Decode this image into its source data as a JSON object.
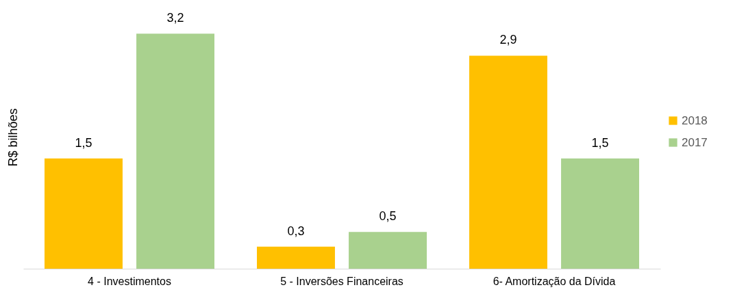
{
  "chart_data": {
    "type": "bar",
    "ylabel": "R$ bilhões",
    "categories": [
      "4 - Investimentos",
      "5 - Inversões Financeiras",
      "6- Amortização da Dívida"
    ],
    "series": [
      {
        "name": "2018",
        "color": "#ffc000",
        "values": [
          1.5,
          0.3,
          2.9
        ],
        "value_labels": [
          "1,5",
          "0,3",
          "2,9"
        ]
      },
      {
        "name": "2017",
        "color": "#a9d18e",
        "values": [
          3.2,
          0.5,
          1.5
        ],
        "value_labels": [
          "3,2",
          "0,5",
          "1,5"
        ]
      }
    ],
    "legend": "right",
    "grid": false
  }
}
